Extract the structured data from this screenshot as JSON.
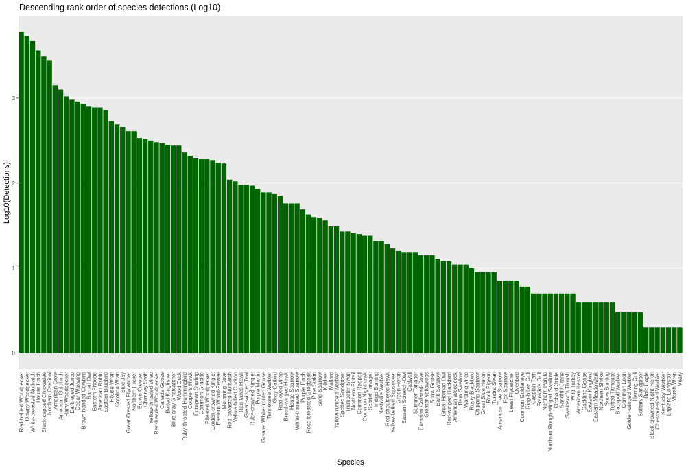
{
  "chart_data": {
    "type": "bar",
    "title": "Descending rank order of species detections (Log10)",
    "x_label": "Species",
    "y_label": "Log10(Detections)",
    "color": "#006400",
    "grid": true,
    "ylim": [
      -0.19,
      3.96
    ],
    "yticks": [
      0,
      1,
      2,
      3
    ],
    "categories": [
      "Red-bellied Woodpecker",
      "Downy Woodpecker",
      "White-breasted Nuthatch",
      "House Finch",
      "Black-capped Chickadee",
      "Northern Cardinal",
      "American Crow",
      "American Goldfinch",
      "Hairy Woodpecker",
      "Dark-eyed Junco",
      "Cedar Waxwing",
      "Brown-headed Cowbird",
      "Barred Owl",
      "Eastern Phoebe",
      "American Robin",
      "Eastern Bluebird",
      "House Wren",
      "Carolina Wren",
      "Blue Jay",
      "Great Crested Flycatcher",
      "Northern Flicker",
      "Brown Creeper",
      "Chimney Swift",
      "Yellow-throated Vireo",
      "Red-headed Woodpecker",
      "Canada Goose",
      "Belted Kingfisher",
      "Blue-gray Gnatcatcher",
      "Wood Duck",
      "Ruby-throated Hummingbird",
      "Cooper's Hawk",
      "European Starling",
      "Common Grackle",
      "Pileated Woodpecker",
      "Golden-crowned Kinglet",
      "Eastern Wood-Pewee",
      "Mourning Dove",
      "Red-breasted Nuthatch",
      "Yellow-billed Cuckoo",
      "Red-tailed Hawk",
      "Green-winged Teal",
      "Ruby-crowned Kinglet",
      "Purple Martin",
      "Greater White-fronted Goose",
      "Tennessee Warbler",
      "Gray Catbird",
      "Red-eyed Vireo",
      "Broad-winged Hawk",
      "House Sparrow",
      "White-throated Sparrow",
      "Purple Finch",
      "Rose-breasted Grosbeak",
      "Pine Siskin",
      "Song Sparrow",
      "Killdeer",
      "Mallard",
      "Yellow-rumped Warbler",
      "Spotted Sandpiper",
      "Trumpeter Swan",
      "Northern Pintail",
      "Common Redpoll",
      "Common Nighthawk",
      "Scarlet Tanager",
      "Indigo Bunting",
      "Nashville Warbler",
      "Red-shouldered Hawk",
      "Yellow-bellied Sapsucker",
      "Green Heron",
      "Eastern Screech-Owl",
      "Gadwall",
      "Summer Tanager",
      "Eurasian Collared-Dove",
      "Greater Yellowlegs",
      "Snow Goose",
      "Bank Swallow",
      "Great Horned Owl",
      "Red-winged Blackbird",
      "American Woodcock",
      "Barn Swallow",
      "Warbling Vireo",
      "Rusty Blackbird",
      "Chipping Sparrow",
      "Great Blue Heron",
      "Rock Pigeon",
      "Tundra Swan",
      "American Tree Sparrow",
      "Fox Sparrow",
      "Least Flycatcher",
      "Ovenbird",
      "Common Goldeneye",
      "Ring-billed Gull",
      "Caspian Tern",
      "Franklin's Gull",
      "Northern Parula",
      "Northern Rough-winged Swallow",
      "Orchard Oriole",
      "Sandhill Crane",
      "Swainson's Thrush",
      "Wild Turkey",
      "American Kestrel",
      "Cackling Goose",
      "Eastern Kingbird",
      "Eastern Meadowlark",
      "Northern Shrike",
      "Snow Bunting",
      "Tufted Titmouse",
      "Blackpoll Warbler",
      "Common Loon",
      "Golden-winged Warbler",
      "Herring Gull",
      "Solitary Sandpiper",
      "Bald Eagle",
      "Black-crowned Night-Heron",
      "Chestnut-sided Warbler",
      "Kentucky Warbler",
      "Lapland Longspur",
      "Marsh Wren",
      "Veery"
    ],
    "values": [
      3.78,
      3.73,
      3.67,
      3.56,
      3.49,
      3.44,
      3.15,
      3.1,
      3.02,
      2.98,
      2.96,
      2.93,
      2.9,
      2.89,
      2.89,
      2.86,
      2.73,
      2.69,
      2.66,
      2.61,
      2.61,
      2.53,
      2.52,
      2.5,
      2.48,
      2.47,
      2.45,
      2.44,
      2.44,
      2.36,
      2.32,
      2.29,
      2.28,
      2.28,
      2.27,
      2.24,
      2.23,
      2.04,
      2.02,
      1.98,
      1.98,
      1.97,
      1.93,
      1.89,
      1.89,
      1.87,
      1.85,
      1.76,
      1.76,
      1.76,
      1.69,
      1.63,
      1.6,
      1.59,
      1.56,
      1.49,
      1.49,
      1.43,
      1.43,
      1.41,
      1.4,
      1.38,
      1.38,
      1.32,
      1.32,
      1.28,
      1.23,
      1.2,
      1.18,
      1.18,
      1.18,
      1.15,
      1.15,
      1.15,
      1.11,
      1.08,
      1.08,
      1.04,
      1.04,
      1.04,
      1.0,
      0.95,
      0.95,
      0.95,
      0.95,
      0.85,
      0.85,
      0.85,
      0.85,
      0.78,
      0.78,
      0.7,
      0.7,
      0.7,
      0.7,
      0.7,
      0.7,
      0.7,
      0.7,
      0.6,
      0.6,
      0.6,
      0.6,
      0.6,
      0.6,
      0.6,
      0.48,
      0.48,
      0.48,
      0.48,
      0.48,
      0.3,
      0.3,
      0.3,
      0.3,
      0.3,
      0.3,
      0.3
    ]
  }
}
